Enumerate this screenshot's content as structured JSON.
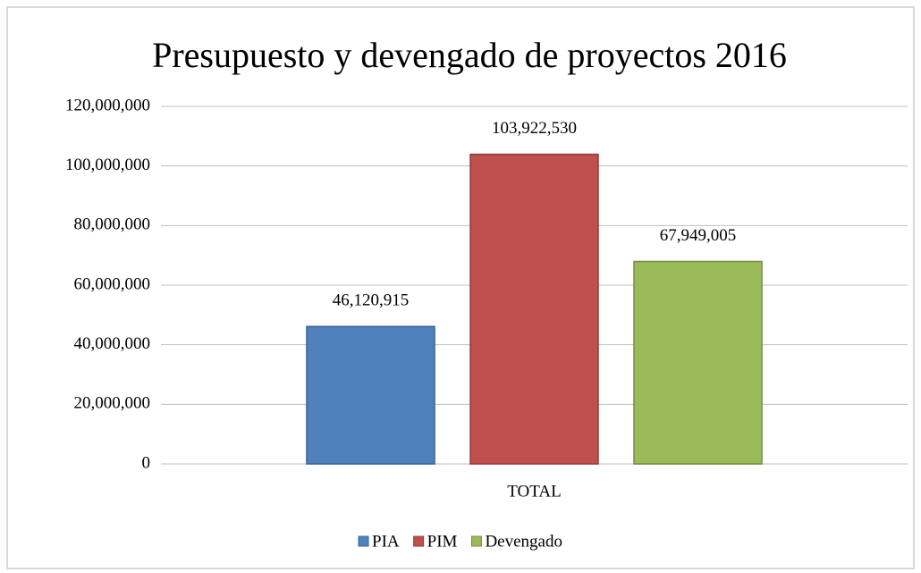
{
  "chart_data": {
    "type": "bar",
    "title": "Presupuesto y devengado  de proyectos  2016",
    "categories": [
      "TOTAL"
    ],
    "series": [
      {
        "name": "PIA",
        "color": "#4f81bd",
        "values": [
          46120915
        ],
        "value_labels": [
          "46,120,915"
        ]
      },
      {
        "name": "PIM",
        "color": "#c0504d",
        "values": [
          103922530
        ],
        "value_labels": [
          "103,922,530"
        ]
      },
      {
        "name": "Devengado",
        "color": "#9bbb59",
        "values": [
          67949005
        ],
        "value_labels": [
          "67,949,005"
        ]
      }
    ],
    "ylim": [
      0,
      120000000
    ],
    "yticks": [
      0,
      {
        "value": 20000000,
        "label": "20,000,000"
      },
      {
        "value": 40000000,
        "label": "40,000,000"
      },
      {
        "value": 60000000,
        "label": "60,000,000"
      },
      {
        "value": 80000000,
        "label": "80,000,000"
      },
      {
        "value": 100000000,
        "label": "100,000,000"
      },
      {
        "value": 120000000,
        "label": "120,000,000"
      }
    ],
    "grid": true,
    "legend": "bottom"
  }
}
